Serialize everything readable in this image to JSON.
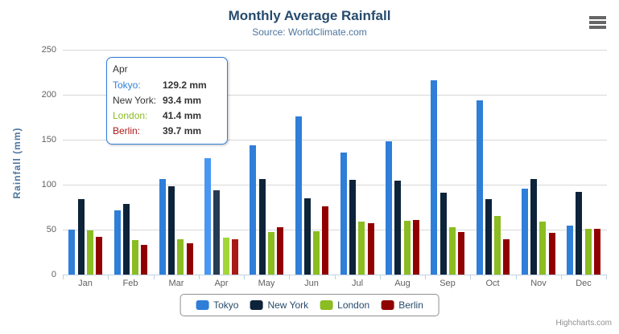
{
  "header": {
    "title": "Monthly Average Rainfall",
    "subtitle": "Source: WorldClimate.com"
  },
  "credit": "Highcharts.com",
  "chart_data": {
    "type": "bar",
    "title": "Monthly Average Rainfall",
    "subtitle": "Source: WorldClimate.com",
    "xlabel": "",
    "ylabel": "Rainfall (mm)",
    "ylim": [
      0,
      250
    ],
    "yticks": [
      0,
      50,
      100,
      150,
      200,
      250
    ],
    "grid": true,
    "legend_position": "bottom",
    "hovered_category": "Apr",
    "categories": [
      "Jan",
      "Feb",
      "Mar",
      "Apr",
      "May",
      "Jun",
      "Jul",
      "Aug",
      "Sep",
      "Oct",
      "Nov",
      "Dec"
    ],
    "series": [
      {
        "name": "Tokyo",
        "color": "#2f7ed8",
        "hover_color": "#4897f2",
        "values": [
          49.9,
          71.5,
          106.4,
          129.2,
          144.0,
          176.0,
          135.6,
          148.5,
          216.4,
          194.1,
          95.6,
          54.4
        ]
      },
      {
        "name": "New York",
        "color": "#0d233a",
        "hover_color": "#263c53",
        "values": [
          83.6,
          78.8,
          98.5,
          93.4,
          106.0,
          84.5,
          105.0,
          104.3,
          91.2,
          83.5,
          106.6,
          92.3
        ]
      },
      {
        "name": "London",
        "color": "#8bbc21",
        "hover_color": "#a4d53a",
        "values": [
          48.9,
          38.8,
          39.3,
          41.4,
          47.0,
          48.3,
          59.0,
          59.6,
          52.4,
          65.2,
          59.3,
          51.2
        ]
      },
      {
        "name": "Berlin",
        "color": "#910000",
        "hover_color": "#aa1919",
        "values": [
          42.4,
          33.2,
          34.5,
          39.7,
          52.6,
          75.5,
          57.4,
          60.4,
          47.6,
          39.1,
          46.8,
          51.1
        ]
      }
    ]
  },
  "tooltip": {
    "header": "Apr",
    "rows": [
      {
        "label": "Tokyo:",
        "value": "129.2 mm",
        "color": "#2f7ed8"
      },
      {
        "label": "New York:",
        "value": "93.4 mm",
        "color": "#333333"
      },
      {
        "label": "London:",
        "value": "41.4 mm",
        "color": "#8bbc21"
      },
      {
        "label": "Berlin:",
        "value": "39.7 mm",
        "color": "#aa1919"
      }
    ]
  },
  "legend": {
    "items": [
      {
        "label": "Tokyo",
        "color": "#2f7ed8"
      },
      {
        "label": "New York",
        "color": "#0d233a"
      },
      {
        "label": "London",
        "color": "#8bbc21"
      },
      {
        "label": "Berlin",
        "color": "#910000"
      }
    ]
  }
}
